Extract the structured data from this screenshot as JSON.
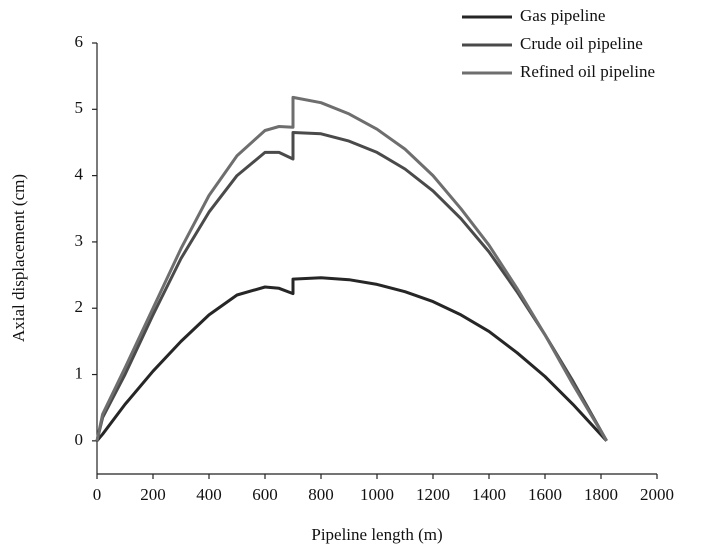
{
  "chart_data": {
    "type": "line",
    "x_label": "Pipeline length (m)",
    "y_label": "Axial displacement (cm)",
    "x": [
      0,
      20,
      100,
      200,
      300,
      400,
      500,
      600,
      650,
      700,
      700,
      800,
      900,
      1000,
      1100,
      1200,
      1300,
      1400,
      1500,
      1600,
      1700,
      1820
    ],
    "series": [
      {
        "name": "Gas pipeline",
        "color": "#262626",
        "values": [
          0,
          0.1,
          0.55,
          1.05,
          1.5,
          1.9,
          2.2,
          2.32,
          2.3,
          2.22,
          2.44,
          2.46,
          2.43,
          2.36,
          2.25,
          2.1,
          1.9,
          1.65,
          1.33,
          0.97,
          0.55,
          0
        ]
      },
      {
        "name": "Crude oil pipeline",
        "color": "#4a4a4a",
        "values": [
          0,
          0.35,
          1.0,
          1.9,
          2.75,
          3.45,
          4.0,
          4.35,
          4.35,
          4.25,
          4.65,
          4.63,
          4.52,
          4.35,
          4.1,
          3.77,
          3.35,
          2.85,
          2.25,
          1.6,
          0.9,
          0
        ]
      },
      {
        "name": "Refined oil pipeline",
        "color": "#6e6e6e",
        "values": [
          0,
          0.4,
          1.1,
          2.0,
          2.9,
          3.7,
          4.3,
          4.68,
          4.74,
          4.73,
          5.18,
          5.1,
          4.93,
          4.7,
          4.4,
          4.0,
          3.5,
          2.95,
          2.3,
          1.6,
          0.85,
          0
        ]
      }
    ],
    "xlim": [
      0,
      2000
    ],
    "xticks": [
      0,
      200,
      400,
      600,
      800,
      1000,
      1200,
      1400,
      1600,
      1800,
      2000
    ],
    "ylim": [
      -0.5,
      6
    ],
    "yticks": [
      0,
      1,
      2,
      3,
      4,
      5,
      6
    ],
    "grid": false,
    "legend": "upper right"
  }
}
